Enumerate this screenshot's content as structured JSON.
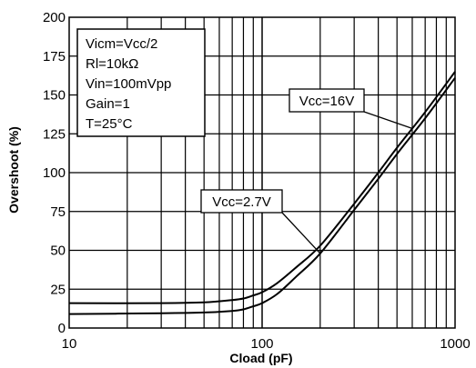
{
  "chart_data": {
    "type": "line",
    "title": "",
    "xlabel": "Cload (pF)",
    "ylabel": "Overshoot (%)",
    "x_scale": "log",
    "xlim": [
      10,
      1000
    ],
    "ylim": [
      0,
      200
    ],
    "grid": true,
    "x_tick_labels": [
      "10",
      "100",
      "1000"
    ],
    "y_ticks": [
      0,
      25,
      50,
      75,
      100,
      125,
      150,
      175,
      200
    ],
    "y_tick_labels": [
      "0",
      "25",
      "50",
      "75",
      "100",
      "125",
      "150",
      "175",
      "200"
    ],
    "conditions": [
      "Vicm=Vcc/2",
      "Rl=10kΩ",
      "Vin=100mVpp",
      "Gain=1",
      "T=25°C"
    ],
    "series": [
      {
        "name": "Vcc=16V",
        "color": "#000000",
        "x": [
          10,
          30,
          50,
          70,
          80,
          90,
          100,
          120,
          150,
          200,
          300,
          400,
          500,
          700,
          1000
        ],
        "y": [
          16,
          16,
          16.5,
          18,
          19,
          21,
          23,
          29,
          39,
          53,
          80,
          100,
          116,
          139,
          165
        ]
      },
      {
        "name": "Vcc=2.7V",
        "color": "#000000",
        "x": [
          10,
          30,
          50,
          70,
          80,
          90,
          100,
          120,
          150,
          200,
          300,
          400,
          500,
          700,
          1000
        ],
        "y": [
          9,
          9.5,
          10,
          11,
          12,
          14,
          16,
          22,
          33,
          48,
          76,
          96,
          112,
          135,
          161
        ]
      }
    ],
    "annotations": [
      {
        "text": "Vcc=16V",
        "series": "Vcc=16V",
        "at_x": 600
      },
      {
        "text": "Vcc=2.7V",
        "series": "Vcc=2.7V",
        "at_x": 200
      }
    ]
  }
}
